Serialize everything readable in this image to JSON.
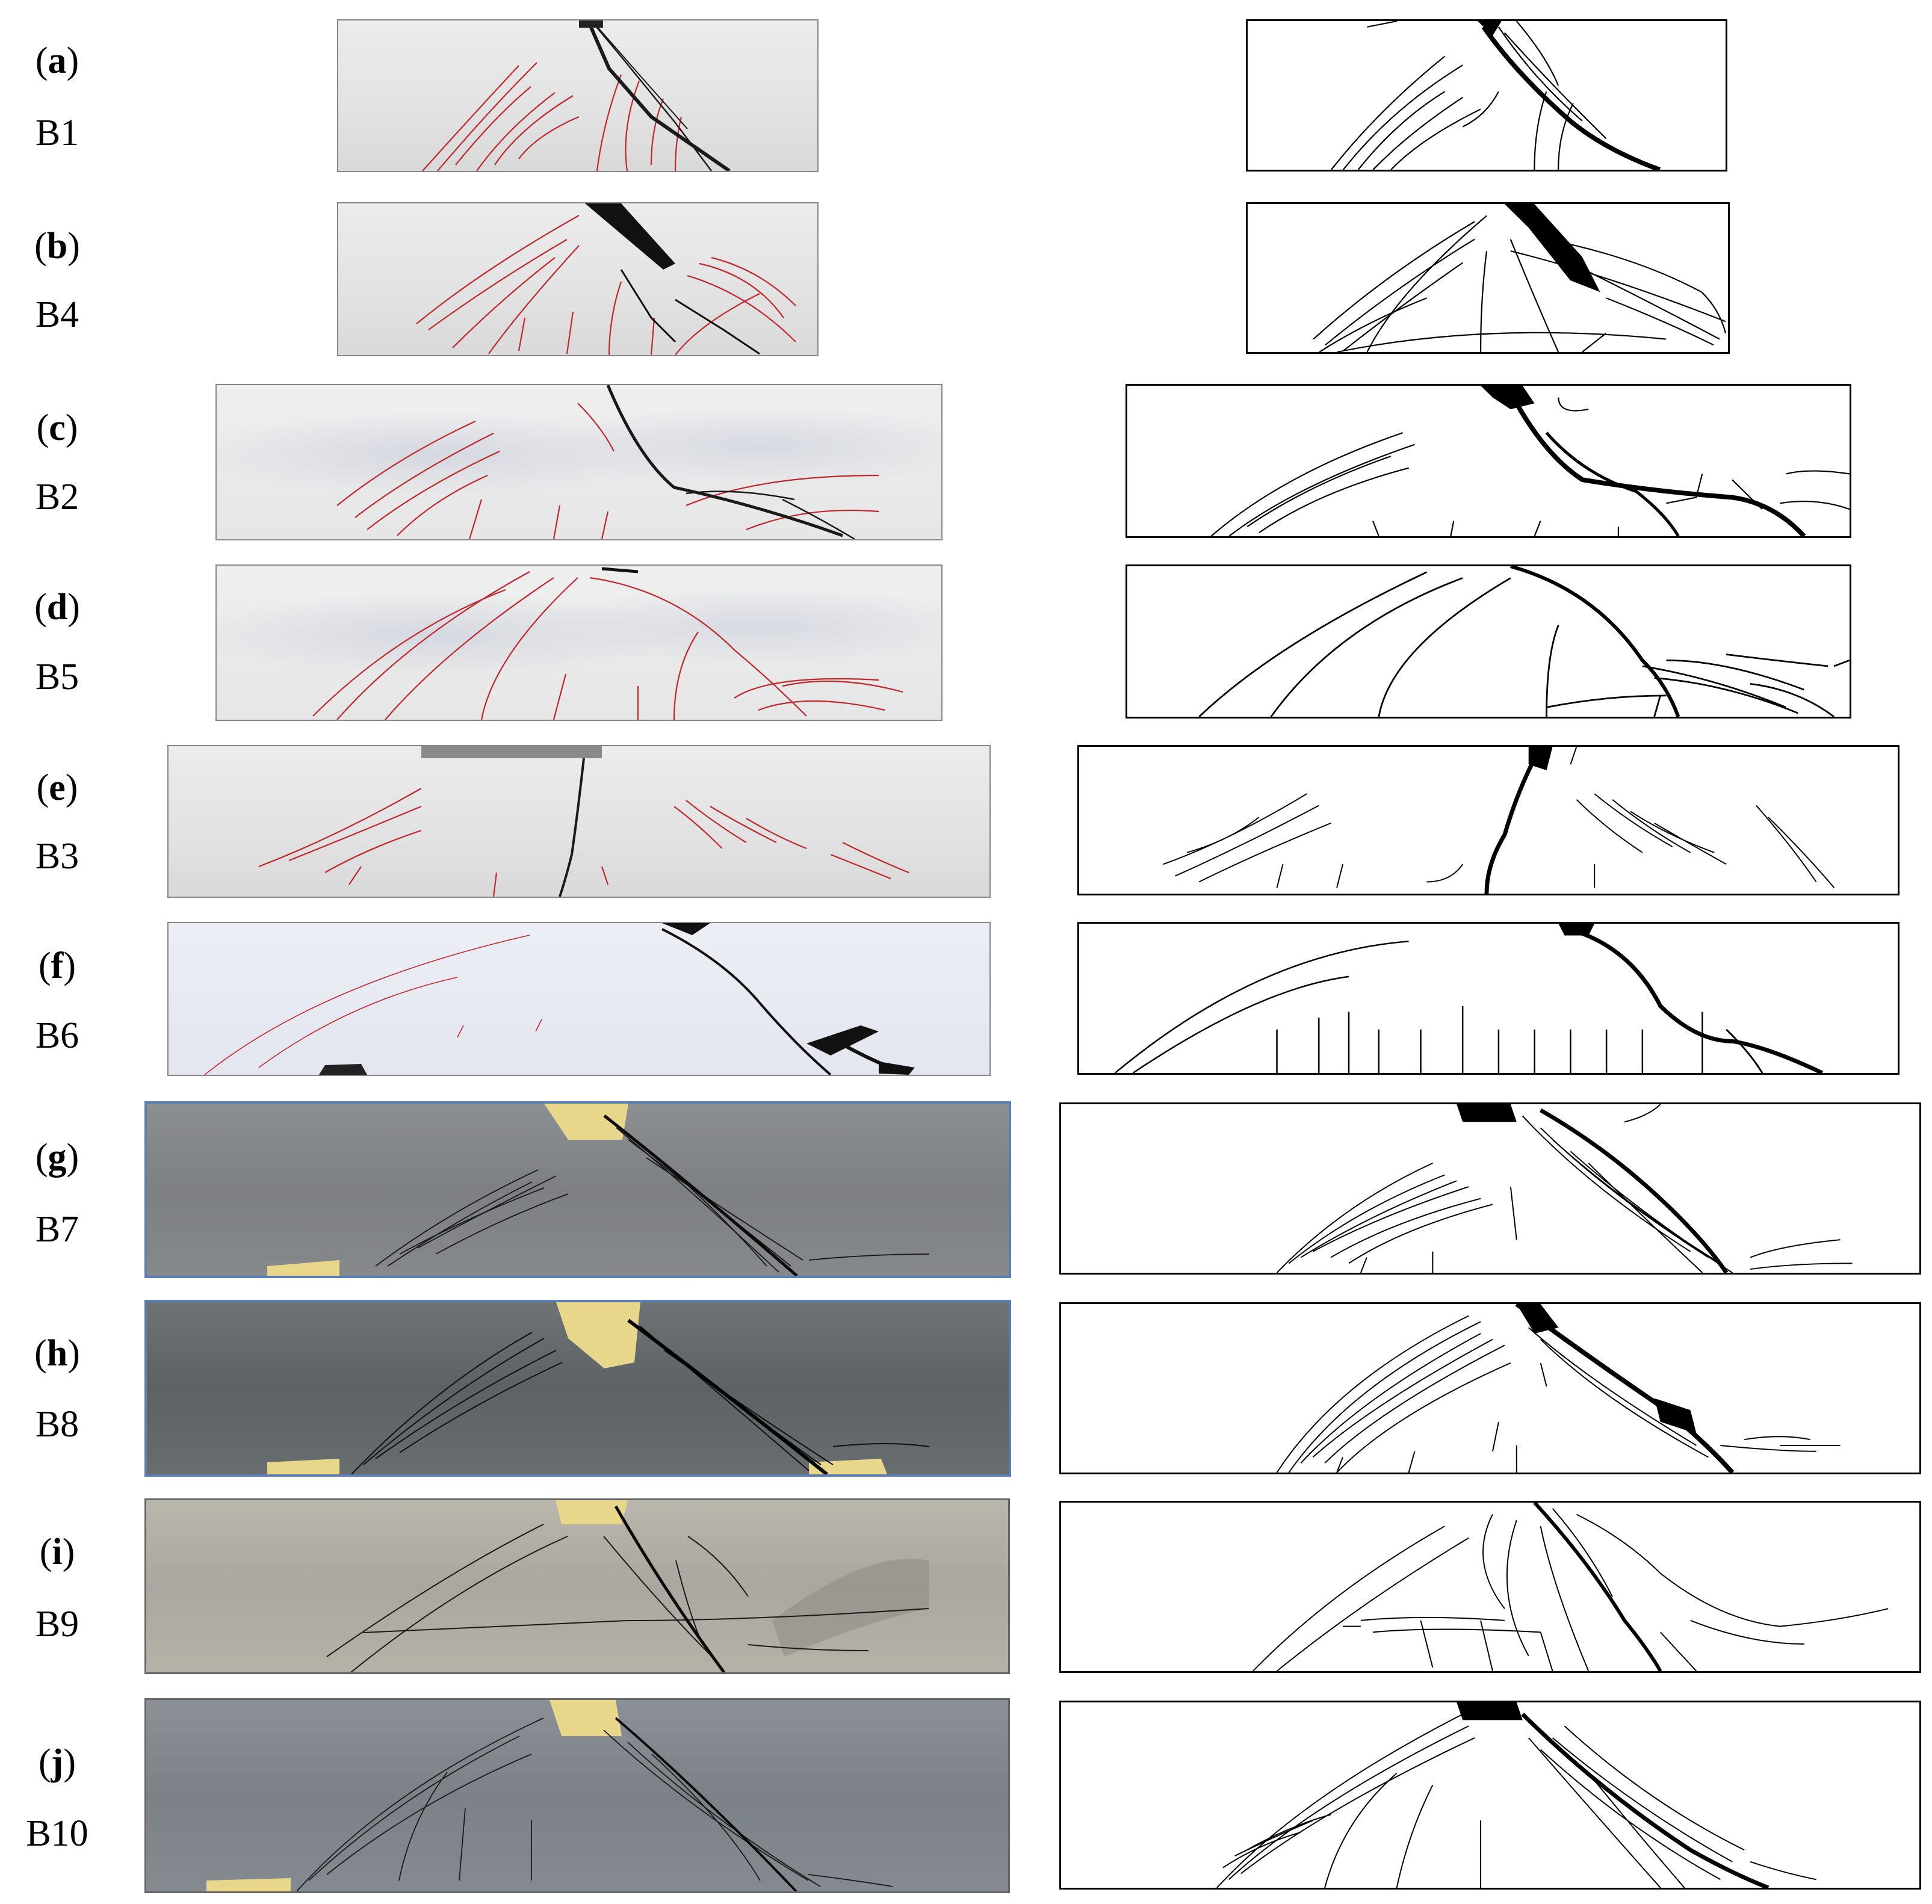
{
  "panels": [
    {
      "letter": "a",
      "beam": "B1"
    },
    {
      "letter": "b",
      "beam": "B4"
    },
    {
      "letter": "c",
      "beam": "B2"
    },
    {
      "letter": "d",
      "beam": "B5"
    },
    {
      "letter": "e",
      "beam": "B3"
    },
    {
      "letter": "f",
      "beam": "B6"
    },
    {
      "letter": "g",
      "beam": "B7"
    },
    {
      "letter": "h",
      "beam": "B8"
    },
    {
      "letter": "i",
      "beam": "B9"
    },
    {
      "letter": "j",
      "beam": "B10"
    }
  ],
  "crack_colors": {
    "photo_marker": "#c0282d",
    "dark_marker": "#1a1a1a",
    "sketch": "#000000"
  }
}
